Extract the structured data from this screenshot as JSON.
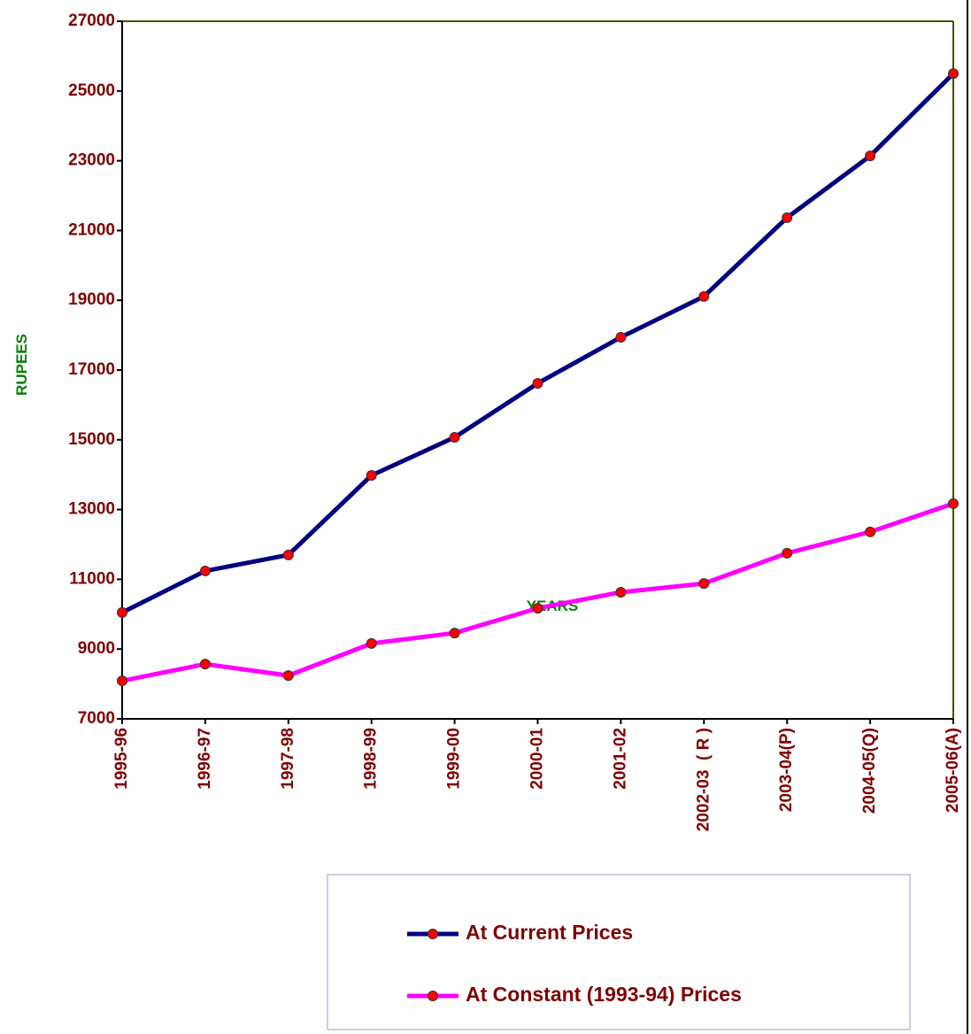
{
  "chart_data": {
    "type": "line",
    "categories": [
      "1995-96",
      "1996-97",
      "1997-98",
      "1998-99",
      "1999-00",
      "2000-01",
      "2001-02",
      "2002-03  ( R )",
      "2003-04(P)",
      "2004-05(Q)",
      "2005-06(A)"
    ],
    "x_label": "YEARS",
    "y_label": "RUPEES",
    "series": [
      {
        "name": "At Current Prices",
        "color": "#000080",
        "values": [
          10050,
          11240,
          11700,
          13980,
          15070,
          16620,
          17940,
          19110,
          21370,
          23140,
          25500
        ]
      },
      {
        "name": "At Constant (1993-94) Prices",
        "color": "#ff00ff",
        "values": [
          8090,
          8570,
          8240,
          9160,
          9460,
          10170,
          10630,
          10880,
          11750,
          12360,
          13170
        ]
      }
    ],
    "marker_color": "#ff0000",
    "ylim": [
      7000,
      27000
    ],
    "yticks": [
      7000,
      9000,
      11000,
      13000,
      15000,
      17000,
      19000,
      21000,
      23000,
      25000,
      27000
    ],
    "grid": false
  }
}
